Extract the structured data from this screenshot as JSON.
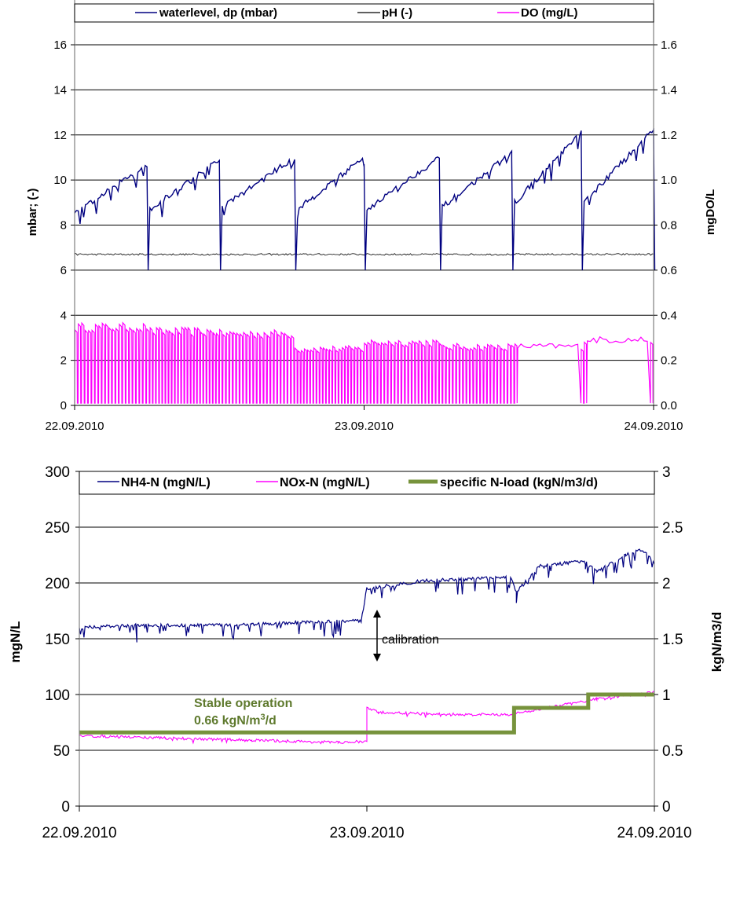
{
  "chart_data": [
    {
      "type": "line",
      "legend": {
        "placement": "top",
        "entries": [
          "waterlevel, dp (mbar)",
          "pH (-)",
          "DO (mg/L)"
        ]
      },
      "ylabel": "mbar; (-)",
      "y2label": "mgDO/L",
      "ylim": [
        0,
        16
      ],
      "y2lim": [
        0,
        1.6
      ],
      "yticks": [
        "0",
        "2",
        "4",
        "6",
        "8",
        "10",
        "12",
        "14",
        "16"
      ],
      "y2ticks": [
        "0.0",
        "0.2",
        "0.4",
        "0.6",
        "0.8",
        "1.0",
        "1.2",
        "1.4",
        "1.6"
      ],
      "xticks": [
        "22.09.2010",
        "23.09.2010",
        "24.09.2010"
      ],
      "grid": true,
      "series": [
        {
          "name": "waterlevel, dp (mbar)",
          "color": "#000080",
          "axis": "left",
          "cycles": [
            {
              "start": 0.0,
              "end": 0.125,
              "from": 8.5,
              "to": 10.7
            },
            {
              "start": 0.13,
              "end": 0.25,
              "from": 8.7,
              "to": 10.9
            },
            {
              "start": 0.255,
              "end": 0.38,
              "from": 8.8,
              "to": 11.0
            },
            {
              "start": 0.385,
              "end": 0.5,
              "from": 8.7,
              "to": 11.0
            },
            {
              "start": 0.505,
              "end": 0.63,
              "from": 8.7,
              "to": 11.0
            },
            {
              "start": 0.635,
              "end": 0.755,
              "from": 8.8,
              "to": 11.2
            },
            {
              "start": 0.76,
              "end": 0.875,
              "from": 9.0,
              "to": 12.1
            },
            {
              "start": 0.88,
              "end": 1.0,
              "from": 9.0,
              "to": 12.3
            }
          ],
          "min": 6.0
        },
        {
          "name": "pH (-)",
          "color": "#000000",
          "axis": "left",
          "level": 6.7
        },
        {
          "name": "DO (mg/L)",
          "color": "#ff00ff",
          "axis": "right",
          "range": [
            0,
            0.42
          ],
          "segments": [
            {
              "start": 0.0,
              "end": 0.13,
              "high": 0.36
            },
            {
              "start": 0.13,
              "end": 0.25,
              "high": 0.34
            },
            {
              "start": 0.25,
              "end": 0.38,
              "high": 0.33
            },
            {
              "start": 0.38,
              "end": 0.5,
              "high": 0.26
            },
            {
              "start": 0.5,
              "end": 0.63,
              "high": 0.29
            },
            {
              "start": 0.63,
              "end": 0.76,
              "high": 0.27
            },
            {
              "start": 0.76,
              "end": 0.88,
              "high": 0.27
            },
            {
              "start": 0.88,
              "end": 1.0,
              "high": 0.3
            }
          ]
        }
      ]
    },
    {
      "type": "line",
      "legend": {
        "placement": "top",
        "entries": [
          "NH4-N (mgN/L)",
          "NOx-N (mgN/L)",
          "specific N-load (kgN/m3/d)"
        ]
      },
      "ylabel": "mgN/L",
      "y2label": "kgN/m3/d",
      "ylim": [
        0,
        300
      ],
      "y2lim": [
        0,
        3
      ],
      "yticks": [
        "0",
        "50",
        "100",
        "150",
        "200",
        "250",
        "300"
      ],
      "y2ticks": [
        "0",
        "0.5",
        "1",
        "1.5",
        "2",
        "2.5",
        "3"
      ],
      "xticks": [
        "22.09.2010",
        "23.09.2010",
        "24.09.2010"
      ],
      "grid": true,
      "annotations": {
        "calibration": "calibration",
        "stable_line1": "Stable operation",
        "stable_line2_pre": "0.66 kgN/m",
        "stable_line2_sup": "3",
        "stable_line2_post": "/d"
      },
      "series": [
        {
          "name": "NH4-N (mgN/L)",
          "color": "#000080",
          "axis": "left",
          "points": [
            [
              0.0,
              160
            ],
            [
              0.1,
              162
            ],
            [
              0.2,
              162
            ],
            [
              0.3,
              163
            ],
            [
              0.4,
              165
            ],
            [
              0.49,
              166
            ],
            [
              0.5,
              195
            ],
            [
              0.6,
              202
            ],
            [
              0.75,
              205
            ],
            [
              0.76,
              192
            ],
            [
              0.8,
              215
            ],
            [
              0.88,
              220
            ],
            [
              0.9,
              210
            ],
            [
              0.95,
              225
            ],
            [
              0.98,
              230
            ],
            [
              1.0,
              218
            ]
          ]
        },
        {
          "name": "NOx-N (mgN/L)",
          "color": "#ff00ff",
          "axis": "left",
          "points": [
            [
              0.0,
              63
            ],
            [
              0.15,
              61
            ],
            [
              0.3,
              59
            ],
            [
              0.45,
              57
            ],
            [
              0.5,
              58
            ],
            [
              0.5,
              88
            ],
            [
              0.52,
              84
            ],
            [
              0.65,
              82
            ],
            [
              0.75,
              82
            ],
            [
              0.78,
              85
            ],
            [
              0.9,
              96
            ],
            [
              1.0,
              102
            ]
          ]
        },
        {
          "name": "specific N-load (kgN/m3/d)",
          "color": "#77933c",
          "axis": "right",
          "steps": [
            [
              0.0,
              0.66
            ],
            [
              0.756,
              0.66
            ],
            [
              0.756,
              0.88
            ],
            [
              0.885,
              0.88
            ],
            [
              0.885,
              1.0
            ],
            [
              1.0,
              1.0
            ]
          ]
        }
      ]
    }
  ]
}
